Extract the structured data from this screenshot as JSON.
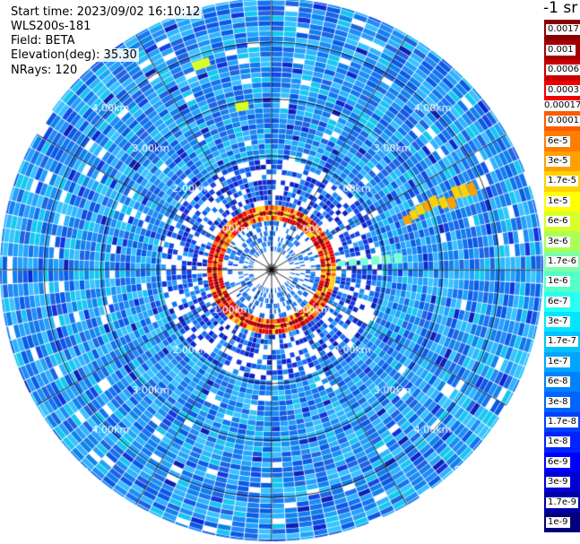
{
  "info": {
    "start_time": "Start time: 2023/09/02 16:10:12",
    "instrument": "WLS200s-181",
    "field": "Field: BETA",
    "elevation": "Elevation(deg): 35.30",
    "nrays": "NRays: 120"
  },
  "colorbar": {
    "title": "-1 sr",
    "top_group": [
      {
        "label": "0.0017",
        "color": "#8b0000"
      },
      {
        "label": "0.001",
        "color": "#a50000"
      },
      {
        "label": "0.0006",
        "color": "#c80000"
      },
      {
        "label": "0.0003",
        "color": "#ef0000"
      }
    ],
    "separator_label": "0.00017",
    "main_group": [
      {
        "label": "0.0001",
        "color": "#ff5a00"
      },
      {
        "label": "6e-5",
        "color": "#ff7d00"
      },
      {
        "label": "3e-5",
        "color": "#ffa000"
      },
      {
        "label": "1.7e-5",
        "color": "#ffd200"
      },
      {
        "label": "1e-5",
        "color": "#ffff00"
      },
      {
        "label": "6e-6",
        "color": "#d7ff28"
      },
      {
        "label": "3e-6",
        "color": "#aaff55"
      },
      {
        "label": "1.7e-6",
        "color": "#7dffaa"
      },
      {
        "label": "1e-6",
        "color": "#55ffc8"
      },
      {
        "label": "6e-7",
        "color": "#28fff0"
      },
      {
        "label": "3e-7",
        "color": "#00e6ff"
      },
      {
        "label": "1.7e-7",
        "color": "#00c3ff"
      },
      {
        "label": "1e-7",
        "color": "#00a5ff"
      },
      {
        "label": "6e-8",
        "color": "#0082ff"
      },
      {
        "label": "3e-8",
        "color": "#0064ff"
      },
      {
        "label": "1.7e-8",
        "color": "#0041ff"
      },
      {
        "label": "1e-8",
        "color": "#0023ff"
      },
      {
        "label": "6e-9",
        "color": "#0000ff"
      },
      {
        "label": "3e-9",
        "color": "#0000d2"
      },
      {
        "label": "1.7e-9",
        "color": "#0000aa"
      },
      {
        "label": "1e-9",
        "color": "#00007d"
      }
    ]
  },
  "range_rings": [
    {
      "label": "1.00km",
      "km": 1
    },
    {
      "label": "2.00km",
      "km": 2
    },
    {
      "label": "3.00km",
      "km": 3
    },
    {
      "label": "4.00km",
      "km": 4
    },
    {
      "label": "5.00km",
      "km": 5
    }
  ],
  "spokes": 12,
  "nrays": 120
}
